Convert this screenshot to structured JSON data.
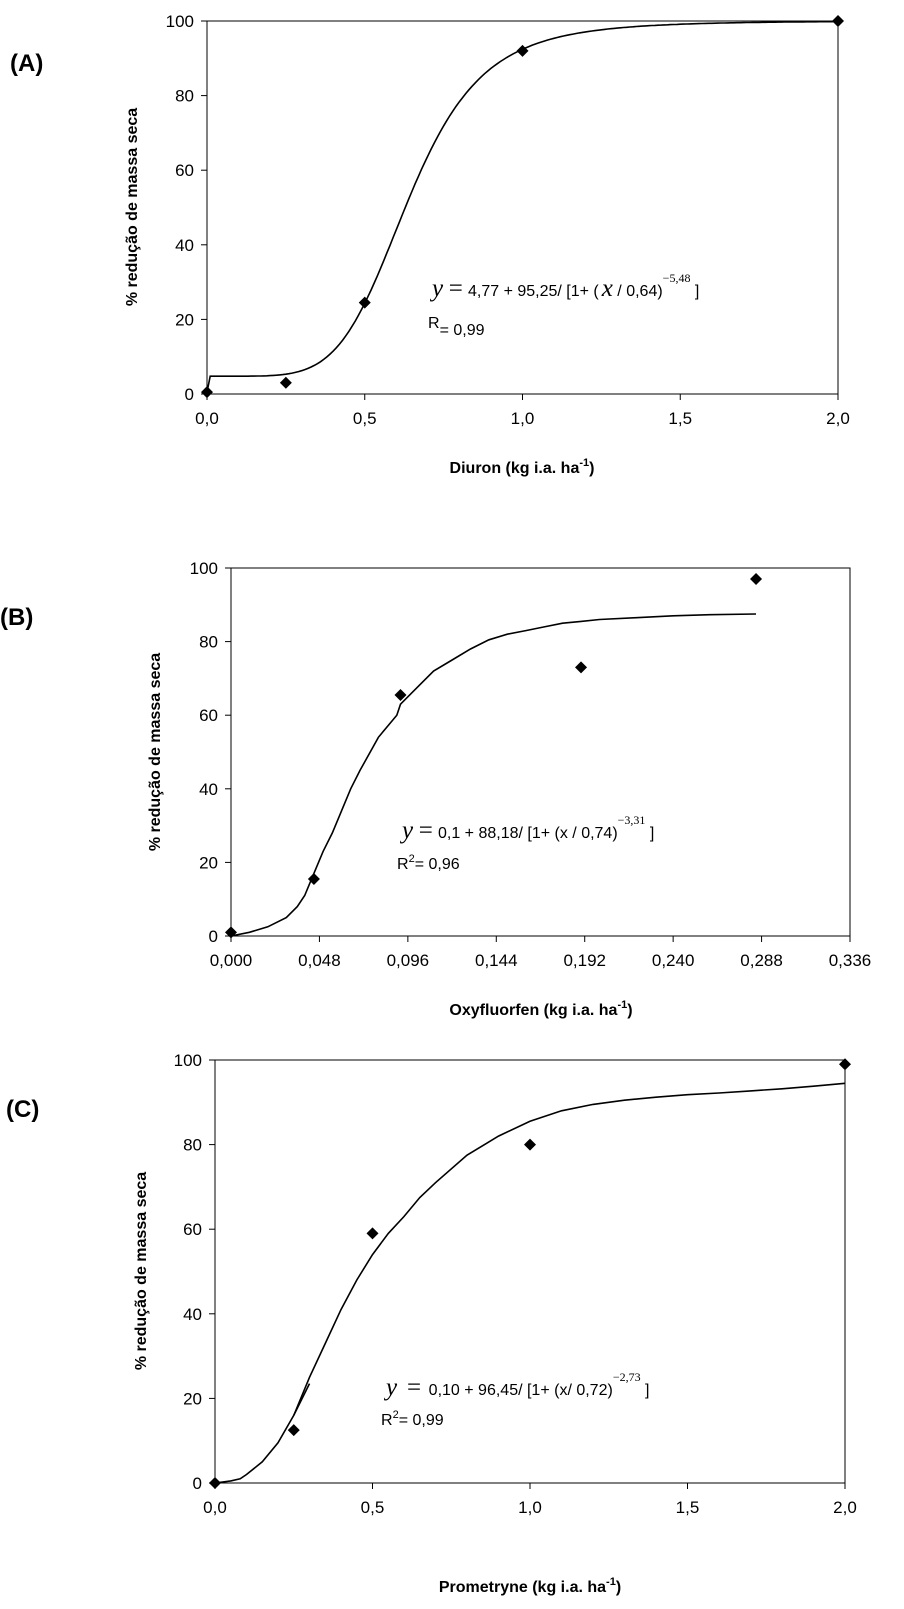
{
  "chart_data": [
    {
      "type": "scatter",
      "panel_label": "(A)",
      "xlabel": "Diuron (kg i.a. ha",
      "xlabel_sup": "-1",
      "xlabel_end": ")",
      "ylabel": "% redução de massa seca",
      "xlim": [
        0,
        2.0
      ],
      "ylim": [
        0,
        100
      ],
      "x_ticks": [
        "0,0",
        "0,5",
        "1,0",
        "1,5",
        "2,0"
      ],
      "x_tick_values": [
        0,
        0.5,
        1.0,
        1.5,
        2.0
      ],
      "y_ticks": [
        "0",
        "20",
        "40",
        "60",
        "80",
        "100"
      ],
      "y_tick_values": [
        0,
        20,
        40,
        60,
        80,
        100
      ],
      "points": {
        "x": [
          0,
          0.25,
          0.5,
          1.0,
          2.0
        ],
        "y": [
          0.5,
          3,
          24.5,
          92,
          100
        ]
      },
      "fit": {
        "a": 4.77,
        "b": 95.25,
        "x0": 0.64,
        "p": -5.48
      },
      "equation": {
        "y": "y",
        "eq": "=",
        "pre": "4,77 + 95,25/ [1+ (",
        "x": "x",
        "post": " / 0,64)",
        "exp": "−5,48",
        "end": " ]"
      },
      "fit_stat": {
        "label": "R",
        "sup": "",
        "value": "= 0,99"
      }
    },
    {
      "type": "scatter",
      "panel_label": "(B)",
      "xlabel": "Oxyfluorfen (kg i.a. ha",
      "xlabel_sup": "-1",
      "xlabel_end": ")",
      "ylabel": "% redução de massa seca",
      "xlim": [
        0,
        0.336
      ],
      "ylim": [
        0,
        100
      ],
      "x_ticks": [
        "0,000",
        "0,048",
        "0,096",
        "0,144",
        "0,192",
        "0,240",
        "0,288",
        "0,336"
      ],
      "x_tick_values": [
        0,
        0.048,
        0.096,
        0.144,
        0.192,
        0.24,
        0.288,
        0.336
      ],
      "y_ticks": [
        "0",
        "20",
        "40",
        "60",
        "80",
        "100"
      ],
      "y_tick_values": [
        0,
        20,
        40,
        60,
        80,
        100
      ],
      "points": {
        "x": [
          0,
          0.045,
          0.092,
          0.19,
          0.285
        ],
        "y": [
          1,
          15.5,
          65.5,
          73,
          97
        ]
      },
      "fit_curve": {
        "x": [
          0,
          0.01,
          0.02,
          0.03,
          0.036,
          0.04,
          0.045,
          0.05,
          0.055,
          0.06,
          0.065,
          0.07,
          0.08,
          0.09,
          0.092,
          0.1,
          0.11,
          0.12,
          0.13,
          0.14,
          0.15,
          0.16,
          0.17,
          0.18,
          0.19,
          0.2,
          0.22,
          0.24,
          0.26,
          0.285
        ],
        "y": [
          0,
          1,
          2.5,
          5,
          8,
          11,
          17,
          23,
          28,
          34,
          40,
          45,
          54,
          60,
          63,
          67,
          72,
          75,
          78,
          80.5,
          82,
          83,
          84,
          85,
          85.5,
          86,
          86.5,
          87,
          87.3,
          87.5
        ]
      },
      "equation": {
        "y": "y",
        "eq": "=",
        "pre": "0,1 + 88,18/ [1+ (x / 0,74)",
        "x": "",
        "post": "",
        "exp": "−3,31",
        "end": " ]"
      },
      "fit_stat": {
        "label": "R",
        "sup": "2",
        "value": "= 0,96"
      }
    },
    {
      "type": "scatter",
      "panel_label": "(C)",
      "xlabel": "Prometryne (kg i.a. ha",
      "xlabel_sup": "-1",
      "xlabel_end": ")",
      "ylabel": "% redução de massa seca",
      "xlim": [
        0,
        2.0
      ],
      "ylim": [
        0,
        100
      ],
      "x_ticks": [
        "0,0",
        "0,5",
        "1,0",
        "1,5",
        "2,0"
      ],
      "x_tick_values": [
        0,
        0.5,
        1.0,
        1.5,
        2.0
      ],
      "y_ticks": [
        "0",
        "20",
        "40",
        "60",
        "80",
        "100"
      ],
      "y_tick_values": [
        0,
        20,
        40,
        60,
        80,
        100
      ],
      "points": {
        "x": [
          0,
          0.25,
          0.5,
          1.0,
          2.0
        ],
        "y": [
          0,
          12.5,
          59,
          80,
          99
        ]
      },
      "fit_curve": {
        "x": [
          0,
          0.05,
          0.08,
          0.1,
          0.15,
          0.2,
          0.25,
          0.3,
          0.35,
          0.4,
          0.45,
          0.5,
          0.55,
          0.6,
          0.65,
          0.7,
          0.8,
          0.9,
          1.0,
          1.1,
          1.2,
          1.3,
          1.4,
          1.5,
          1.6,
          1.7,
          1.8,
          1.9,
          2.0
        ],
        "y": [
          0,
          0.5,
          1,
          2,
          5,
          9.5,
          16,
          25,
          33,
          41,
          48,
          54,
          59,
          63,
          67.5,
          71,
          77.5,
          82,
          85.5,
          88,
          89.5,
          90.5,
          91.2,
          91.8,
          92.2,
          92.7,
          93.2,
          93.8,
          94.5
        ]
      },
      "extra_segment": {
        "x": [
          0.25,
          0.3
        ],
        "y": [
          16,
          23.5
        ]
      },
      "equation": {
        "y": "y",
        "eq": " =",
        "pre": " 0,10 + 96,45/ [1+ (x/ 0,72)",
        "x": "",
        "post": "",
        "exp": "−2,73",
        "end": " ]"
      },
      "fit_stat": {
        "label": "R",
        "sup": "2",
        "value": "= 0,99"
      }
    }
  ]
}
